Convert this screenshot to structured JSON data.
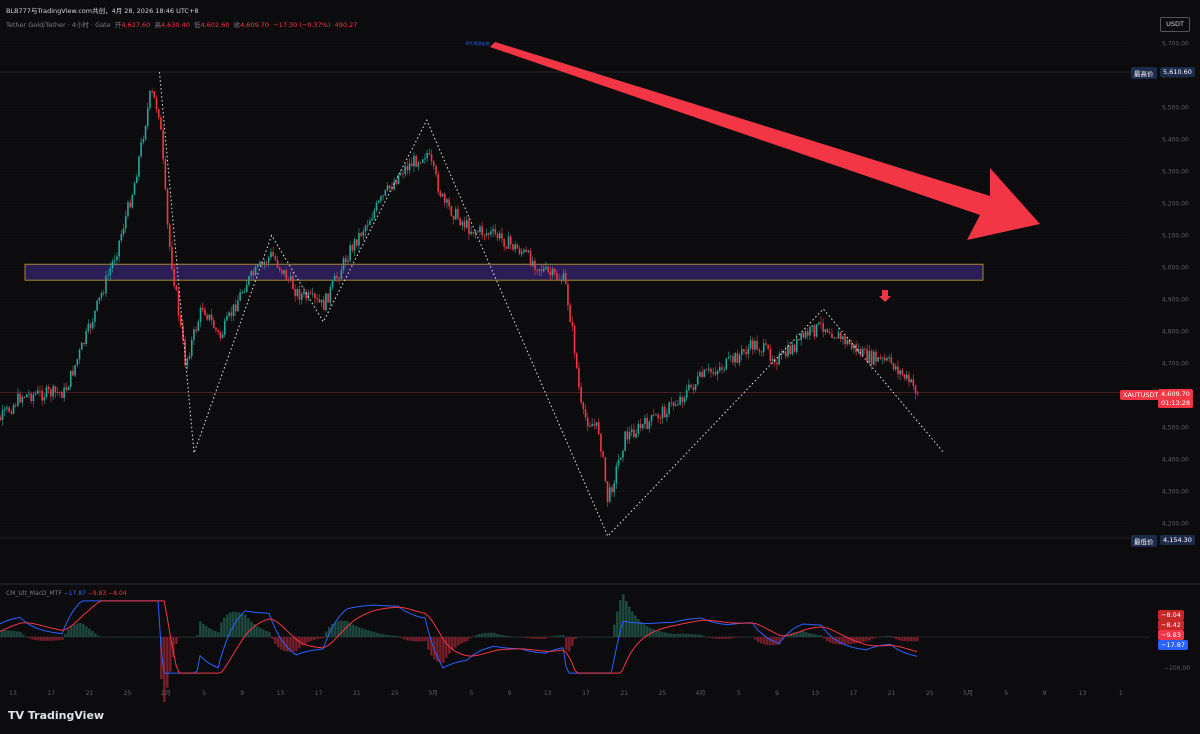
{
  "header": {
    "publisher": "BLB777与TradingView.com共创，4月 28, 2026 18:46 UTC+8",
    "symbol_desc": "Tether Gold/Tether · 4小时 · Gate",
    "open_label": "开",
    "open": "4,627.60",
    "high_label": "高",
    "high": "4,630.40",
    "low_label": "低",
    "low": "4,602.60",
    "close_label": "收",
    "close": "4,609.70",
    "change": "−17.30 (−0.37%)",
    "volume": "490.27"
  },
  "currency_badge": "USDT",
  "price_badges": {
    "highest_label": "最高价",
    "highest_value": "5,610.60",
    "lowest_label": "最低价",
    "lowest_value": "4,154.30",
    "symbol": "XAUTUSDT",
    "last_value": "4,609.70",
    "countdown": "01:13:28"
  },
  "annotation_text": "BTC预测走势",
  "macd": {
    "name": "CM_Ult_MacD_MTF",
    "macd_value": "−17.87",
    "signal_value": "−9.83",
    "hist_value": "−8.04",
    "badges": [
      "−8.04",
      "−8.42",
      "−9.83",
      "−17.87"
    ],
    "axis_label": "−100.00"
  },
  "footer_logo": "TradingView",
  "colors": {
    "up": "#26a69a",
    "down": "#f23645",
    "macd": "#2962ff",
    "signal": "#f23645",
    "arrow": "#f23645",
    "zone": "#2a1d55"
  },
  "chart_data": {
    "type": "candlestick",
    "title": "",
    "interval": "4小时",
    "ylim": [
      4100,
      5720
    ],
    "y_ticks": [
      4200,
      4300,
      4400,
      4500,
      4600,
      4700,
      4800,
      4900,
      5000,
      5100,
      5200,
      5300,
      5400,
      5500,
      5600,
      5700
    ],
    "y_tick_labels": [
      "4,200.00",
      "4,300.00",
      "4,400.00",
      "4,500.00",
      "4,600.00",
      "4,700.00",
      "4,800.00",
      "4,900.00",
      "5,000.00",
      "5,100.00",
      "5,200.00",
      "5,300.00",
      "5,400.00",
      "5,500.00",
      "5,600.00",
      "5,700.00"
    ],
    "x_tick_labels": [
      "13",
      "17",
      "21",
      "25",
      "2月",
      "5",
      "9",
      "13",
      "17",
      "21",
      "25",
      "3月",
      "5",
      "9",
      "13",
      "17",
      "21",
      "25",
      "4月",
      "5",
      "9",
      "13",
      "17",
      "21",
      "25",
      "5月",
      "5",
      "9",
      "13",
      "1"
    ],
    "path_points": [
      {
        "date": "01-10",
        "price": 4480
      },
      {
        "date": "01-14",
        "price": 4600
      },
      {
        "date": "01-19",
        "price": 4610
      },
      {
        "date": "01-22",
        "price": 4820
      },
      {
        "date": "01-25",
        "price": 5050
      },
      {
        "date": "01-27",
        "price": 5250
      },
      {
        "date": "01-29",
        "price": 5550
      },
      {
        "date": "01-30",
        "price": 5480
      },
      {
        "date": "01-31",
        "price": 5100
      },
      {
        "date": "02-02",
        "price": 4700
      },
      {
        "date": "02-04",
        "price": 4880
      },
      {
        "date": "02-06",
        "price": 4780
      },
      {
        "date": "02-09",
        "price": 4950
      },
      {
        "date": "02-12",
        "price": 5040
      },
      {
        "date": "02-15",
        "price": 4920
      },
      {
        "date": "02-18",
        "price": 4880
      },
      {
        "date": "02-21",
        "price": 5050
      },
      {
        "date": "02-24",
        "price": 5180
      },
      {
        "date": "02-27",
        "price": 5300
      },
      {
        "date": "03-02",
        "price": 5360
      },
      {
        "date": "03-04",
        "price": 5200
      },
      {
        "date": "03-07",
        "price": 5120
      },
      {
        "date": "03-10",
        "price": 5100
      },
      {
        "date": "03-13",
        "price": 5050
      },
      {
        "date": "03-16",
        "price": 4980
      },
      {
        "date": "03-18",
        "price": 4960
      },
      {
        "date": "03-19",
        "price": 4780
      },
      {
        "date": "03-20",
        "price": 4540
      },
      {
        "date": "03-22",
        "price": 4490
      },
      {
        "date": "03-23",
        "price": 4270
      },
      {
        "date": "03-25",
        "price": 4470
      },
      {
        "date": "03-28",
        "price": 4520
      },
      {
        "date": "03-31",
        "price": 4580
      },
      {
        "date": "04-03",
        "price": 4660
      },
      {
        "date": "04-06",
        "price": 4700
      },
      {
        "date": "04-09",
        "price": 4760
      },
      {
        "date": "04-12",
        "price": 4710
      },
      {
        "date": "04-15",
        "price": 4790
      },
      {
        "date": "04-17",
        "price": 4820
      },
      {
        "date": "04-19",
        "price": 4780
      },
      {
        "date": "04-22",
        "price": 4720
      },
      {
        "date": "04-25",
        "price": 4700
      },
      {
        "date": "04-28",
        "price": 4610
      }
    ],
    "zigzag": [
      {
        "date": "01-30",
        "price": 5610
      },
      {
        "date": "02-03",
        "price": 4420
      },
      {
        "date": "02-12",
        "price": 5100
      },
      {
        "date": "02-18",
        "price": 4830
      },
      {
        "date": "03-02",
        "price": 5460
      },
      {
        "date": "03-23",
        "price": 4160
      },
      {
        "date": "04-17",
        "price": 4870
      },
      {
        "date": "05-01",
        "price": 4420
      }
    ],
    "resistance_zone": {
      "from": 4960,
      "to": 5010
    },
    "highest": 5610.6,
    "lowest": 4154.3,
    "last_price": 4609.7
  }
}
